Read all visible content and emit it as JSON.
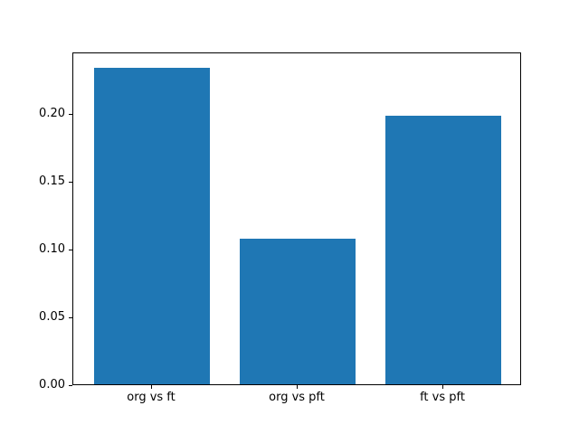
{
  "chart_data": {
    "type": "bar",
    "title": "",
    "xlabel": "",
    "ylabel": "",
    "categories": [
      "org vs ft",
      "org vs pft",
      "ft vs pft"
    ],
    "values": [
      0.234,
      0.1075,
      0.198
    ],
    "bar_color": "#1f77b4",
    "axis_color": "#000000",
    "background_color": "#ffffff",
    "yticks": {
      "values": [
        0,
        0.05,
        0.1,
        0.15,
        0.2
      ],
      "labels": [
        "0.00",
        "0.05",
        "0.10",
        "0.15",
        "0.20"
      ]
    },
    "ylim": [
      0,
      0.2457
    ],
    "xlim": [
      -0.54,
      2.54
    ],
    "bar_width": 0.8,
    "grid": false,
    "legend": "none"
  }
}
